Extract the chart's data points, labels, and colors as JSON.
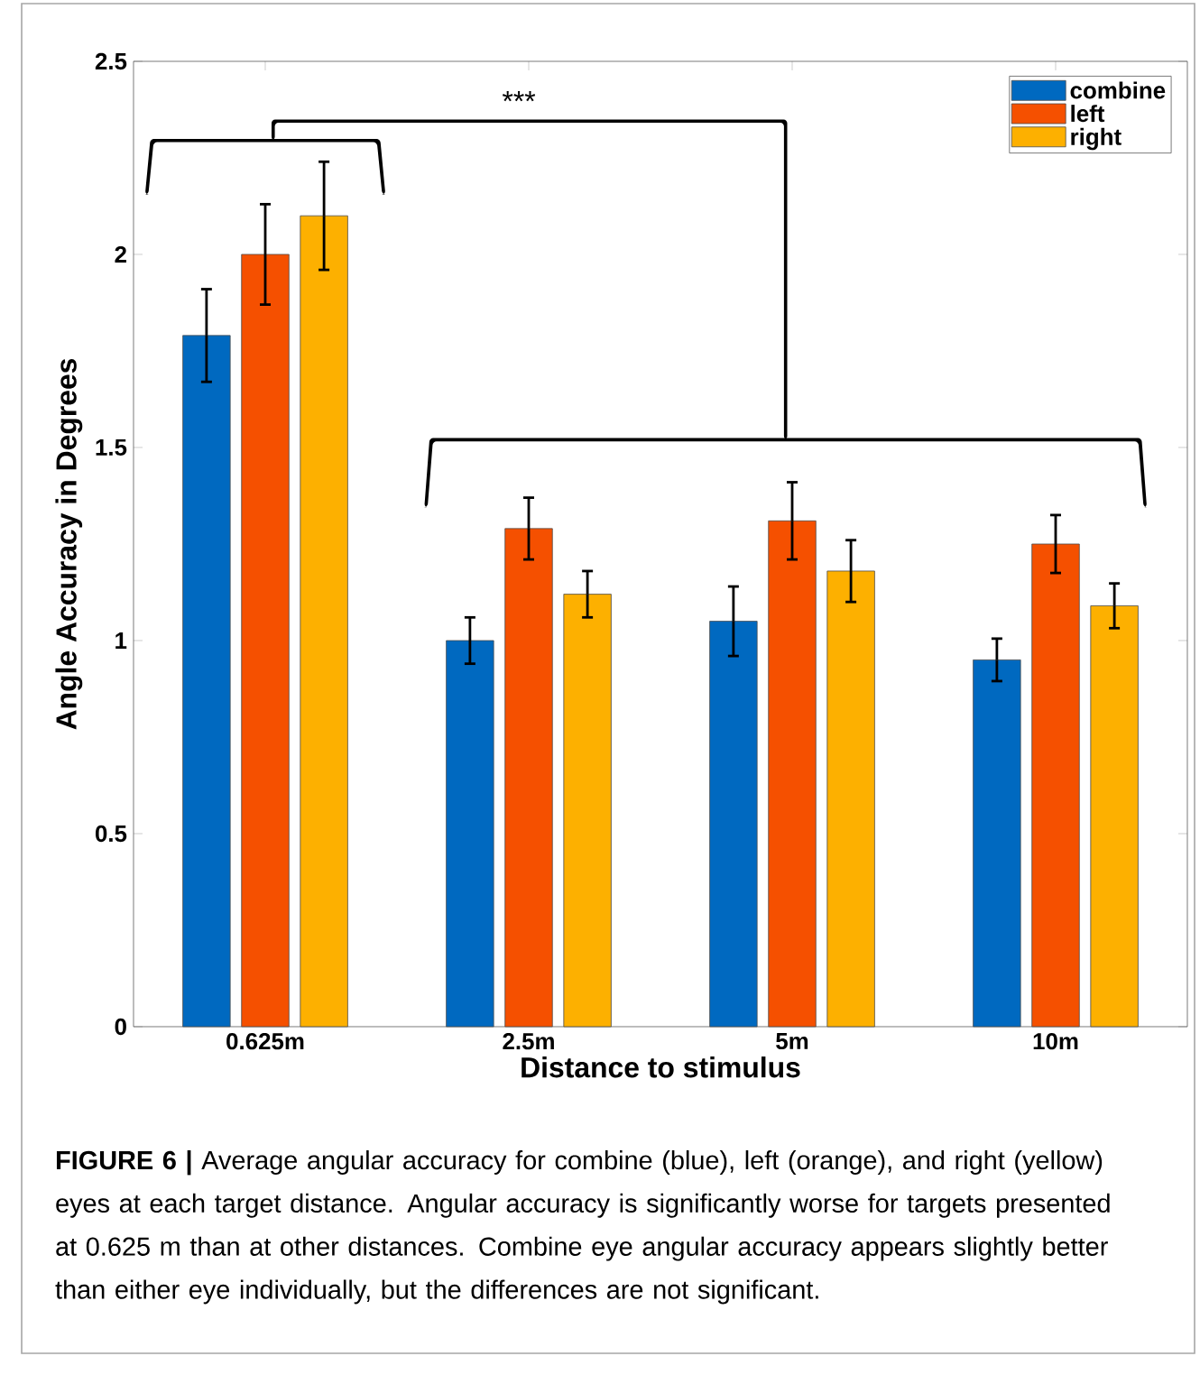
{
  "chart_data": {
    "type": "bar",
    "xlabel": "Distance to stimulus",
    "ylabel": "Angle Accuracy in Degrees",
    "categories": [
      "0.625m",
      "2.5m",
      "5m",
      "10m"
    ],
    "series": [
      {
        "name": "combine",
        "color": "#0069c0",
        "values": [
          1.79,
          1.0,
          1.05,
          0.95
        ],
        "errors": [
          0.12,
          0.06,
          0.09,
          0.055
        ]
      },
      {
        "name": "left",
        "color": "#f55000",
        "values": [
          2.0,
          1.29,
          1.31,
          1.25
        ],
        "errors": [
          0.13,
          0.08,
          0.1,
          0.075
        ]
      },
      {
        "name": "right",
        "color": "#fdb000",
        "values": [
          2.1,
          1.12,
          1.18,
          1.09
        ],
        "errors": [
          0.14,
          0.06,
          0.08,
          0.058
        ]
      }
    ],
    "ylim": [
      0,
      2.5
    ],
    "yticks": [
      0,
      0.5,
      1,
      1.5,
      2,
      2.5
    ],
    "legend": "top right",
    "annotations": [
      "***",
      "**FIGURE 6 |** Average angular accuracy for combine (blue), left (orange), and right (yellow) eyes at each target distance. Angular accuracy is significantly worse for targets presented at 0.625 m than at other distances. Combine eye angular accuracy appears slightly better than either eye individually, but the differences are not significant."
    ]
  }
}
